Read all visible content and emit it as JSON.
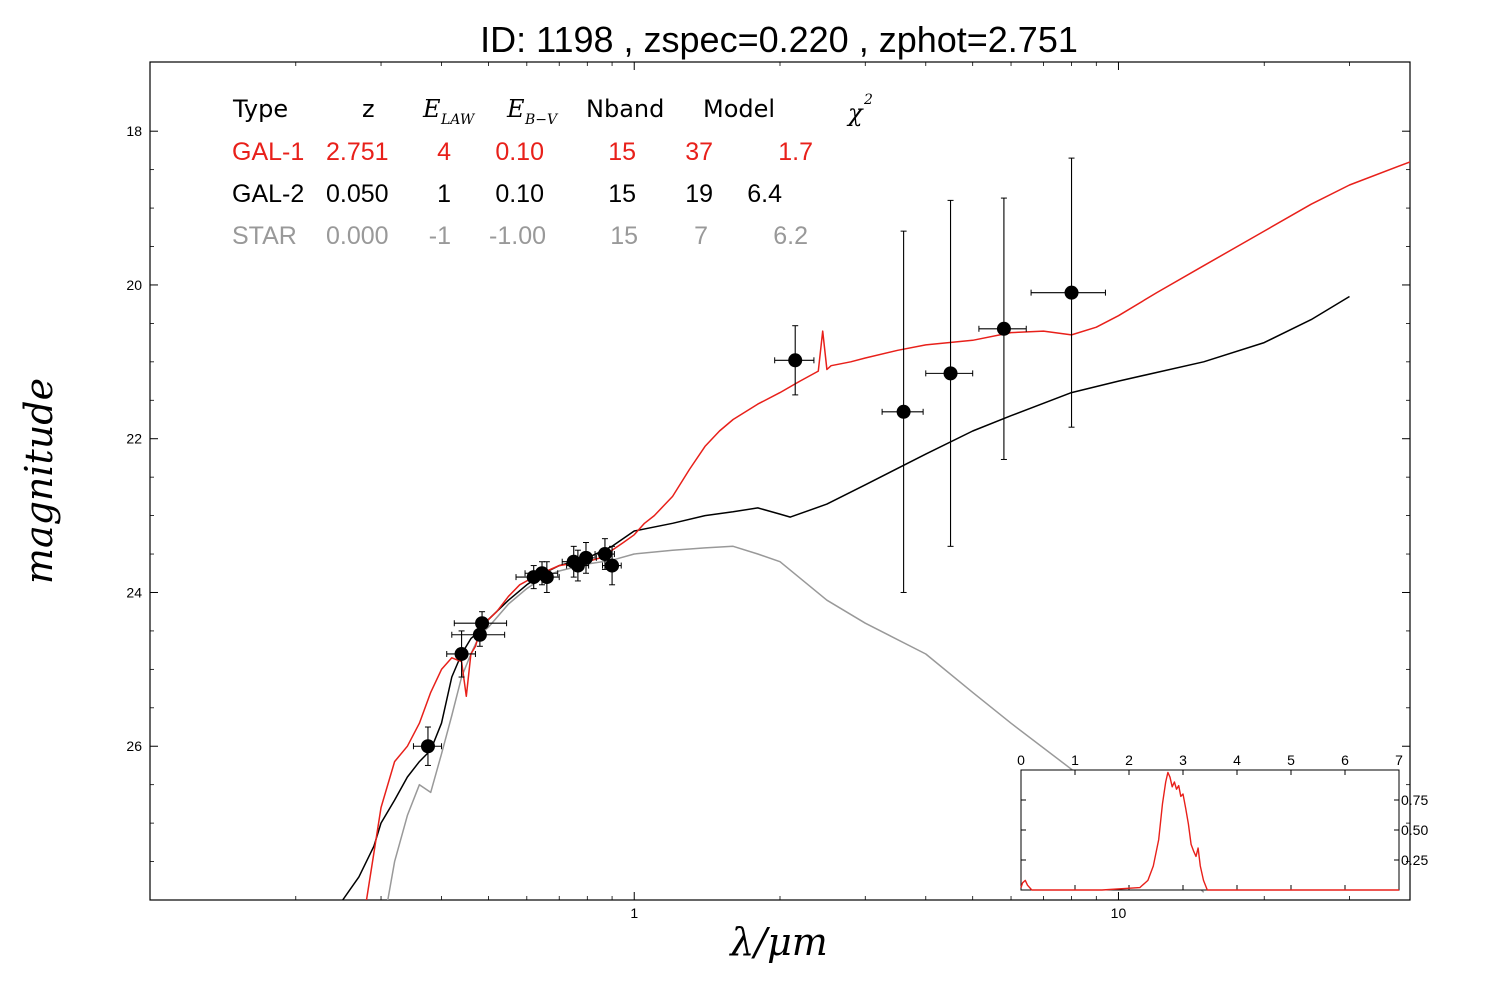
{
  "title": "ID:  1198  , zspec=0.220 , zphot=2.751",
  "xlabel": "λ/μm",
  "ylabel": "magnitude",
  "colors": {
    "gal1": "#e8201a",
    "gal2": "#000000",
    "star": "#999999",
    "points": "#000000"
  },
  "table": {
    "headers": {
      "type": "Type",
      "z": "z",
      "elaw": "E",
      "elaw_sub": "LAW",
      "ebv": "E",
      "ebv_sub": "B−V",
      "nband": "Nband",
      "model": "Model",
      "chi": "χ",
      "chi_sup": "2"
    },
    "rows": [
      {
        "type": "GAL-1",
        "z": "2.751",
        "elaw": "4",
        "ebv": "0.10",
        "nband": "15",
        "model": "37",
        "chi2": "1.7",
        "color": "#e8201a"
      },
      {
        "type": "GAL-2",
        "z": "0.050",
        "elaw": "1",
        "ebv": "0.10",
        "nband": "15",
        "model": "19",
        "chi2": "6.4",
        "color": "#000000"
      },
      {
        "type": "STAR",
        "z": "0.000",
        "elaw": "-1",
        "ebv": "-1.00",
        "nband": "15",
        "model": "7",
        "chi2": "6.2",
        "color": "#999999"
      }
    ]
  },
  "chart_data": [
    {
      "type": "scatter",
      "title": "ID:  1198  , zspec=0.220 , zphot=2.751",
      "xlabel": "λ/μm",
      "ylabel": "magnitude",
      "xscale": "log",
      "xlim": [
        0.1,
        40
      ],
      "ylim": [
        28,
        17.1
      ],
      "y_inverted": true,
      "xticks": [
        1,
        10
      ],
      "xtick_labels": [
        "1",
        "10"
      ],
      "yticks": [
        18,
        20,
        22,
        24,
        26
      ],
      "ytick_labels": [
        "18",
        "20",
        "22",
        "24",
        "26"
      ],
      "points": [
        {
          "x": 0.375,
          "y": 26.0,
          "xerr": 0.025,
          "yerr": 0.25
        },
        {
          "x": 0.44,
          "y": 24.8,
          "xerr": 0.03,
          "yerr": 0.3
        },
        {
          "x": 0.48,
          "y": 24.55,
          "xerr": 0.06,
          "yerr": 0.15
        },
        {
          "x": 0.485,
          "y": 24.4,
          "xerr": 0.06,
          "yerr": 0.15
        },
        {
          "x": 0.62,
          "y": 23.8,
          "xerr": 0.05,
          "yerr": 0.15
        },
        {
          "x": 0.645,
          "y": 23.75,
          "xerr": 0.05,
          "yerr": 0.15
        },
        {
          "x": 0.66,
          "y": 23.8,
          "xerr": 0.04,
          "yerr": 0.2
        },
        {
          "x": 0.75,
          "y": 23.6,
          "xerr": 0.04,
          "yerr": 0.2
        },
        {
          "x": 0.765,
          "y": 23.65,
          "xerr": 0.04,
          "yerr": 0.2
        },
        {
          "x": 0.795,
          "y": 23.55,
          "xerr": 0.04,
          "yerr": 0.2
        },
        {
          "x": 0.87,
          "y": 23.5,
          "xerr": 0.04,
          "yerr": 0.2
        },
        {
          "x": 0.9,
          "y": 23.65,
          "xerr": 0.04,
          "yerr": 0.25
        },
        {
          "x": 2.15,
          "y": 20.98,
          "xerr": 0.2,
          "yerr": 0.45
        },
        {
          "x": 3.6,
          "y": 21.65,
          "xerr": 0.35,
          "yerr": 2.35
        },
        {
          "x": 4.5,
          "y": 21.15,
          "xerr": 0.5,
          "yerr": 2.25
        },
        {
          "x": 5.8,
          "y": 20.57,
          "xerr": 0.65,
          "yerr": 1.7
        },
        {
          "x": 8.0,
          "y": 20.1,
          "xerr": 1.4,
          "yerr": 1.75
        }
      ],
      "series": [
        {
          "name": "GAL-1",
          "color": "#e8201a",
          "x": [
            0.28,
            0.3,
            0.32,
            0.34,
            0.36,
            0.38,
            0.4,
            0.42,
            0.44,
            0.45,
            0.46,
            0.47,
            0.48,
            0.5,
            0.52,
            0.55,
            0.58,
            0.62,
            0.66,
            0.7,
            0.75,
            0.8,
            0.85,
            0.9,
            0.95,
            1.0,
            1.05,
            1.1,
            1.2,
            1.3,
            1.4,
            1.5,
            1.6,
            1.8,
            2.0,
            2.2,
            2.4,
            2.45,
            2.5,
            2.55,
            2.8,
            3.0,
            3.5,
            4.0,
            5.0,
            6.0,
            7.0,
            8.0,
            9.0,
            10,
            12,
            15,
            20,
            25,
            30,
            40
          ],
          "y": [
            28.0,
            26.8,
            26.2,
            26.0,
            25.7,
            25.3,
            25.0,
            24.85,
            24.9,
            25.35,
            24.8,
            24.7,
            24.5,
            24.35,
            24.25,
            24.05,
            23.9,
            23.8,
            23.72,
            23.65,
            23.62,
            23.6,
            23.55,
            23.45,
            23.35,
            23.25,
            23.1,
            23.0,
            22.75,
            22.4,
            22.1,
            21.9,
            21.75,
            21.55,
            21.4,
            21.25,
            21.12,
            20.6,
            21.1,
            21.05,
            21.0,
            20.95,
            20.85,
            20.78,
            20.72,
            20.62,
            20.6,
            20.65,
            20.55,
            20.4,
            20.1,
            19.75,
            19.3,
            18.95,
            18.7,
            18.4
          ]
        },
        {
          "name": "GAL-2",
          "color": "#000000",
          "x": [
            0.2,
            0.25,
            0.27,
            0.29,
            0.3,
            0.32,
            0.34,
            0.36,
            0.38,
            0.4,
            0.42,
            0.44,
            0.46,
            0.48,
            0.5,
            0.55,
            0.6,
            0.65,
            0.7,
            0.8,
            0.9,
            1.0,
            1.2,
            1.4,
            1.6,
            1.8,
            2.0,
            2.1,
            2.5,
            3.0,
            4.0,
            5.0,
            6.0,
            8.0,
            10,
            15,
            20,
            25,
            30
          ],
          "y": [
            28.5,
            28.0,
            27.7,
            27.3,
            27.0,
            26.7,
            26.4,
            26.2,
            26.05,
            25.7,
            25.1,
            24.8,
            24.6,
            24.5,
            24.35,
            24.1,
            23.9,
            23.75,
            23.65,
            23.55,
            23.4,
            23.2,
            23.1,
            23.0,
            22.95,
            22.9,
            22.98,
            23.02,
            22.85,
            22.6,
            22.2,
            21.9,
            21.7,
            21.4,
            21.25,
            21.0,
            20.75,
            20.45,
            20.15
          ]
        },
        {
          "name": "STAR",
          "color": "#999999",
          "x": [
            0.3,
            0.32,
            0.34,
            0.36,
            0.38,
            0.4,
            0.42,
            0.44,
            0.46,
            0.48,
            0.5,
            0.55,
            0.6,
            0.65,
            0.7,
            0.8,
            0.9,
            1.0,
            1.2,
            1.4,
            1.6,
            1.8,
            2.0,
            2.5,
            3.0,
            4.0,
            5.0,
            6.0,
            8.0,
            10,
            12,
            15
          ],
          "y": [
            28.5,
            27.5,
            26.9,
            26.5,
            26.6,
            26.1,
            25.6,
            25.1,
            24.8,
            24.55,
            24.45,
            24.15,
            23.95,
            23.8,
            23.72,
            23.63,
            23.58,
            23.5,
            23.45,
            23.42,
            23.4,
            23.5,
            23.6,
            24.1,
            24.4,
            24.8,
            25.3,
            25.7,
            26.3,
            26.9,
            27.3,
            27.9
          ]
        }
      ]
    },
    {
      "type": "line",
      "xlim": [
        0,
        7
      ],
      "ylim": [
        0,
        1.0
      ],
      "xticks": [
        0,
        1,
        2,
        3,
        4,
        5,
        6,
        7
      ],
      "yticks": [
        0.25,
        0.5,
        0.75
      ],
      "ytick_labels": [
        "0.25",
        "0.50",
        "0.75"
      ],
      "series": [
        {
          "color": "#e8201a",
          "x": [
            0,
            0.03,
            0.08,
            0.12,
            0.2,
            1.5,
            2.2,
            2.35,
            2.45,
            2.55,
            2.62,
            2.68,
            2.72,
            2.76,
            2.8,
            2.84,
            2.88,
            2.92,
            2.96,
            3.0,
            3.05,
            3.1,
            3.15,
            3.2,
            3.24,
            3.28,
            3.32,
            3.38,
            3.45,
            7
          ],
          "y": [
            0.02,
            0.06,
            0.08,
            0.04,
            0.0,
            0.0,
            0.02,
            0.08,
            0.2,
            0.42,
            0.72,
            0.9,
            0.98,
            0.94,
            0.86,
            0.9,
            0.84,
            0.87,
            0.78,
            0.8,
            0.68,
            0.55,
            0.38,
            0.32,
            0.28,
            0.35,
            0.2,
            0.08,
            0.0,
            0.0
          ]
        }
      ]
    }
  ]
}
